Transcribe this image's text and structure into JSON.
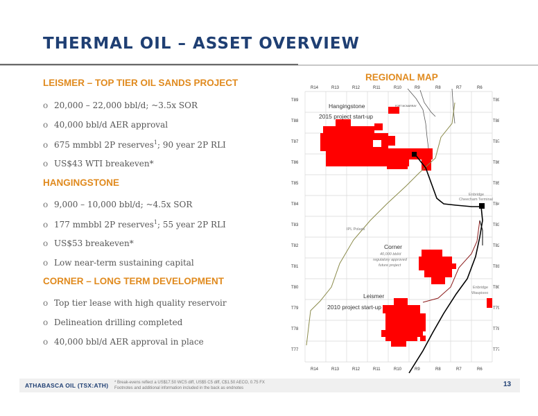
{
  "title": "THERMAL OIL – ASSET OVERVIEW",
  "sections": [
    {
      "heading": "LEISMER – TOP TIER OIL SANDS PROJECT",
      "bullets": [
        {
          "text": "20,000 – 22,000 bbl/d; ~3.5x SOR",
          "sup": "",
          "after": ""
        },
        {
          "text": "40,000 bbl/d AER approval",
          "sup": "",
          "after": ""
        },
        {
          "text": "675 mmbbl 2P reserves",
          "sup": "1",
          "after": "; 90 year 2P RLI"
        },
        {
          "text": "US$43 WTI breakeven*",
          "sup": "",
          "after": ""
        }
      ]
    },
    {
      "heading": "HANGINGSTONE",
      "bullets": [
        {
          "text": "9,000 – 10,000 bbl/d; ~4.5x SOR",
          "sup": "",
          "after": ""
        },
        {
          "text": "177 mmbbl 2P reserves",
          "sup": "1",
          "after": "; 55 year 2P RLI"
        },
        {
          "text": "US$53 breakeven*",
          "sup": "",
          "after": ""
        },
        {
          "text": "Low near-term sustaining capital",
          "sup": "",
          "after": ""
        }
      ]
    },
    {
      "heading": "CORNER – LONG TERM DEVELOPMENT",
      "bullets": [
        {
          "text": "Top tier lease with high quality reservoir",
          "sup": "",
          "after": ""
        },
        {
          "text": "Delineation drilling completed",
          "sup": "",
          "after": ""
        },
        {
          "text": "40,000 bbl/d AER approval in place",
          "sup": "",
          "after": ""
        }
      ]
    }
  ],
  "bullet_mark": "o",
  "map": {
    "title": "REGIONAL MAP",
    "ranges_top": [
      "R14",
      "R13",
      "R12",
      "R11",
      "R10",
      "R9",
      "R8",
      "R7",
      "R6"
    ],
    "ranges_bottom": [
      "R14",
      "R13",
      "R12",
      "R11",
      "R10",
      "R9",
      "R8",
      "R7",
      "R6"
    ],
    "townships_left": [
      "T89",
      "T88",
      "T87",
      "T86",
      "T85",
      "T84",
      "T83",
      "T82",
      "T81",
      "T80",
      "T79",
      "T78",
      "T77"
    ],
    "townships_right": [
      "T89",
      "T88",
      "T87",
      "T86",
      "T85",
      "T84",
      "T83",
      "T82",
      "T81",
      "T80",
      "T79",
      "T78",
      "T77"
    ],
    "labels": {
      "hangingstone": "Hangingstone",
      "hangingstone_sub": "2015 project start-up",
      "enbridge_cheecham_1": "Enbridge",
      "enbridge_cheecham_2": "Cheecham Terminal",
      "ipl_polaris": "IPL Polaris",
      "corner": "Corner",
      "corner_sub1": "40,000 bbl/d",
      "corner_sub2": "regulatory approved",
      "corner_sub3": "future project",
      "enbridge_waupisoo_1": "Enbridge",
      "enbridge_waupisoo_2": "Waupisoo",
      "leismer": "Leismer",
      "leismer_sub": "2010 project start-up",
      "fort_mcmurray": "FORT MCMURRAY"
    },
    "colors": {
      "lease": "#ff0000",
      "grid": "#d8d8d8",
      "pipeline_polaris": "#8a8a4a",
      "pipeline_enbridge": "#000000",
      "pipeline_red": "#8b1a1a"
    }
  },
  "footer": {
    "company": "ATHABASCA OIL (TSX:ATH)",
    "note1": "* Break-evens reflect a US$17.50 WCS diff, US$5 C5 diff, C$1.50 AECO, 0.75 FX",
    "note2": "Footnotes and additional information included in the back as endnotes",
    "page": "13"
  }
}
